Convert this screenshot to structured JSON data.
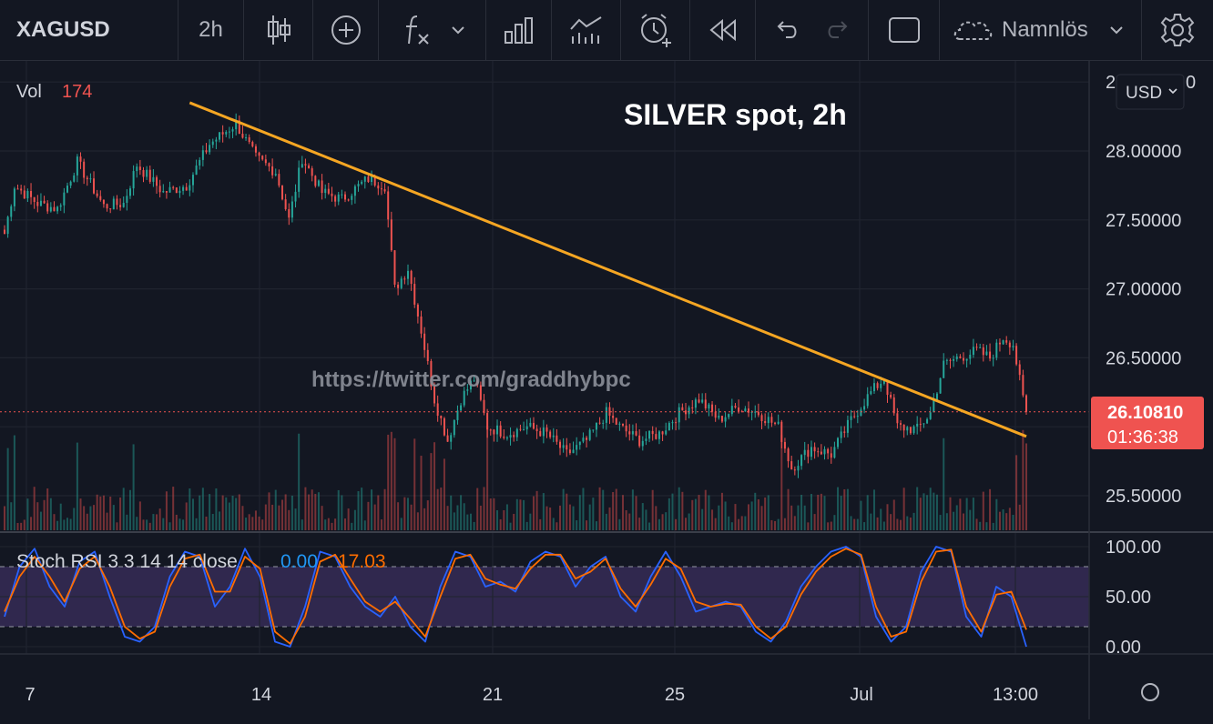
{
  "toolbar": {
    "symbol": "XAGUSD",
    "interval": "2h",
    "layout_name": "Namnlös",
    "icons": [
      "candles-icon",
      "add-indicator-icon",
      "fx-icon",
      "chevron-down-icon",
      "bar-chart-icon",
      "compare-icon",
      "alert-icon",
      "replay-icon",
      "undo-icon",
      "redo-icon",
      "fullscreen-icon",
      "cloud-icon",
      "settings-icon"
    ]
  },
  "colors": {
    "background": "#131722",
    "up": "#26a69a",
    "down": "#ef5350",
    "trendline": "#f5a623",
    "price_badge": "#ef5350",
    "stoch_k": "#2962ff",
    "stoch_d": "#ff6d00",
    "stoch_band": "#7e57c2"
  },
  "main_pane": {
    "vol_label": "Vol",
    "vol_value": "174",
    "annotation": "SILVER spot, 2h",
    "watermark": "https://twitter.com/graddhybpc",
    "currency": "USD",
    "price_ticks": [
      "28.00000",
      "27.50000",
      "27.00000",
      "26.50000",
      "25.50000"
    ],
    "top_tick_partial": "2",
    "top_tick_partial_end": "0",
    "last_price": "26.10810",
    "countdown": "01:36:38"
  },
  "stoch_pane": {
    "label": "Stoch RSI 3 3 14 14 close",
    "k_value": "0.00",
    "d_value": "17.03",
    "ticks": [
      "100.00",
      "50.00",
      "0.00"
    ]
  },
  "time_axis": [
    "7",
    "14",
    "21",
    "25",
    "Jul",
    "13:00"
  ],
  "chart_data": [
    {
      "type": "candlestick",
      "title": "SILVER spot, 2h",
      "symbol": "XAGUSD",
      "interval": "2h",
      "ylim": [
        25.3,
        28.7
      ],
      "x_ticks": [
        "7",
        "14",
        "21",
        "25",
        "Jul",
        "13:00"
      ],
      "anchors": [
        {
          "i": 0,
          "p": 27.4
        },
        {
          "i": 3,
          "p": 27.75
        },
        {
          "i": 10,
          "p": 27.62
        },
        {
          "i": 16,
          "p": 27.58
        },
        {
          "i": 22,
          "p": 27.92
        },
        {
          "i": 30,
          "p": 27.6
        },
        {
          "i": 36,
          "p": 27.62
        },
        {
          "i": 40,
          "p": 27.9
        },
        {
          "i": 48,
          "p": 27.7
        },
        {
          "i": 55,
          "p": 27.75
        },
        {
          "i": 62,
          "p": 28.05
        },
        {
          "i": 70,
          "p": 28.2
        },
        {
          "i": 76,
          "p": 27.95
        },
        {
          "i": 82,
          "p": 27.85
        },
        {
          "i": 86,
          "p": 27.5
        },
        {
          "i": 90,
          "p": 27.95
        },
        {
          "i": 96,
          "p": 27.7
        },
        {
          "i": 102,
          "p": 27.65
        },
        {
          "i": 110,
          "p": 27.8
        },
        {
          "i": 115,
          "p": 27.75
        },
        {
          "i": 118,
          "p": 27.0
        },
        {
          "i": 122,
          "p": 27.15
        },
        {
          "i": 126,
          "p": 26.7
        },
        {
          "i": 130,
          "p": 26.2
        },
        {
          "i": 134,
          "p": 25.9
        },
        {
          "i": 138,
          "p": 26.2
        },
        {
          "i": 142,
          "p": 26.35
        },
        {
          "i": 146,
          "p": 26.0
        },
        {
          "i": 152,
          "p": 25.95
        },
        {
          "i": 158,
          "p": 26.0
        },
        {
          "i": 164,
          "p": 25.95
        },
        {
          "i": 170,
          "p": 25.8
        },
        {
          "i": 176,
          "p": 25.9
        },
        {
          "i": 182,
          "p": 26.1
        },
        {
          "i": 186,
          "p": 26.0
        },
        {
          "i": 192,
          "p": 25.9
        },
        {
          "i": 198,
          "p": 25.95
        },
        {
          "i": 204,
          "p": 26.1
        },
        {
          "i": 210,
          "p": 26.2
        },
        {
          "i": 216,
          "p": 26.05
        },
        {
          "i": 222,
          "p": 26.15
        },
        {
          "i": 228,
          "p": 26.1
        },
        {
          "i": 234,
          "p": 26.0
        },
        {
          "i": 238,
          "p": 25.7
        },
        {
          "i": 244,
          "p": 25.85
        },
        {
          "i": 250,
          "p": 25.8
        },
        {
          "i": 256,
          "p": 26.05
        },
        {
          "i": 262,
          "p": 26.25
        },
        {
          "i": 266,
          "p": 26.35
        },
        {
          "i": 270,
          "p": 26.0
        },
        {
          "i": 276,
          "p": 25.98
        },
        {
          "i": 280,
          "p": 26.1
        },
        {
          "i": 284,
          "p": 26.45
        },
        {
          "i": 288,
          "p": 26.5
        },
        {
          "i": 294,
          "p": 26.55
        },
        {
          "i": 298,
          "p": 26.5
        },
        {
          "i": 302,
          "p": 26.65
        },
        {
          "i": 305,
          "p": 26.6
        },
        {
          "i": 308,
          "p": 26.2
        },
        {
          "i": 309,
          "p": 26.11
        }
      ],
      "candle_count": 310,
      "trendline": [
        {
          "i": 56,
          "p": 28.35
        },
        {
          "i": 309,
          "p": 25.93
        }
      ],
      "last_price": 26.1081
    },
    {
      "type": "line",
      "title": "Stoch RSI 3 3 14 14 close",
      "ylim": [
        0,
        100
      ],
      "bands": [
        20,
        80
      ],
      "series": [
        {
          "name": "K",
          "last": 0.0,
          "values": [
            30,
            80,
            98,
            60,
            40,
            85,
            95,
            50,
            10,
            5,
            20,
            70,
            95,
            90,
            40,
            60,
            98,
            70,
            5,
            0,
            40,
            95,
            90,
            60,
            40,
            30,
            50,
            20,
            5,
            60,
            95,
            90,
            60,
            65,
            55,
            85,
            95,
            90,
            60,
            80,
            90,
            50,
            35,
            70,
            95,
            70,
            35,
            40,
            45,
            40,
            15,
            5,
            25,
            60,
            80,
            95,
            100,
            90,
            30,
            5,
            20,
            75,
            100,
            95,
            30,
            10,
            60,
            50,
            0
          ]
        },
        {
          "name": "D",
          "last": 17.03,
          "values": [
            35,
            70,
            90,
            70,
            45,
            78,
            90,
            60,
            20,
            8,
            15,
            60,
            88,
            92,
            55,
            55,
            90,
            78,
            15,
            3,
            30,
            85,
            92,
            68,
            45,
            35,
            45,
            28,
            10,
            50,
            88,
            92,
            68,
            62,
            58,
            78,
            92,
            92,
            68,
            75,
            88,
            58,
            40,
            62,
            88,
            78,
            45,
            40,
            43,
            42,
            20,
            8,
            20,
            52,
            75,
            90,
            98,
            92,
            40,
            10,
            15,
            65,
            95,
            97,
            40,
            15,
            52,
            55,
            17
          ]
        }
      ]
    },
    {
      "type": "bar",
      "title": "Vol",
      "last": 174
    }
  ]
}
